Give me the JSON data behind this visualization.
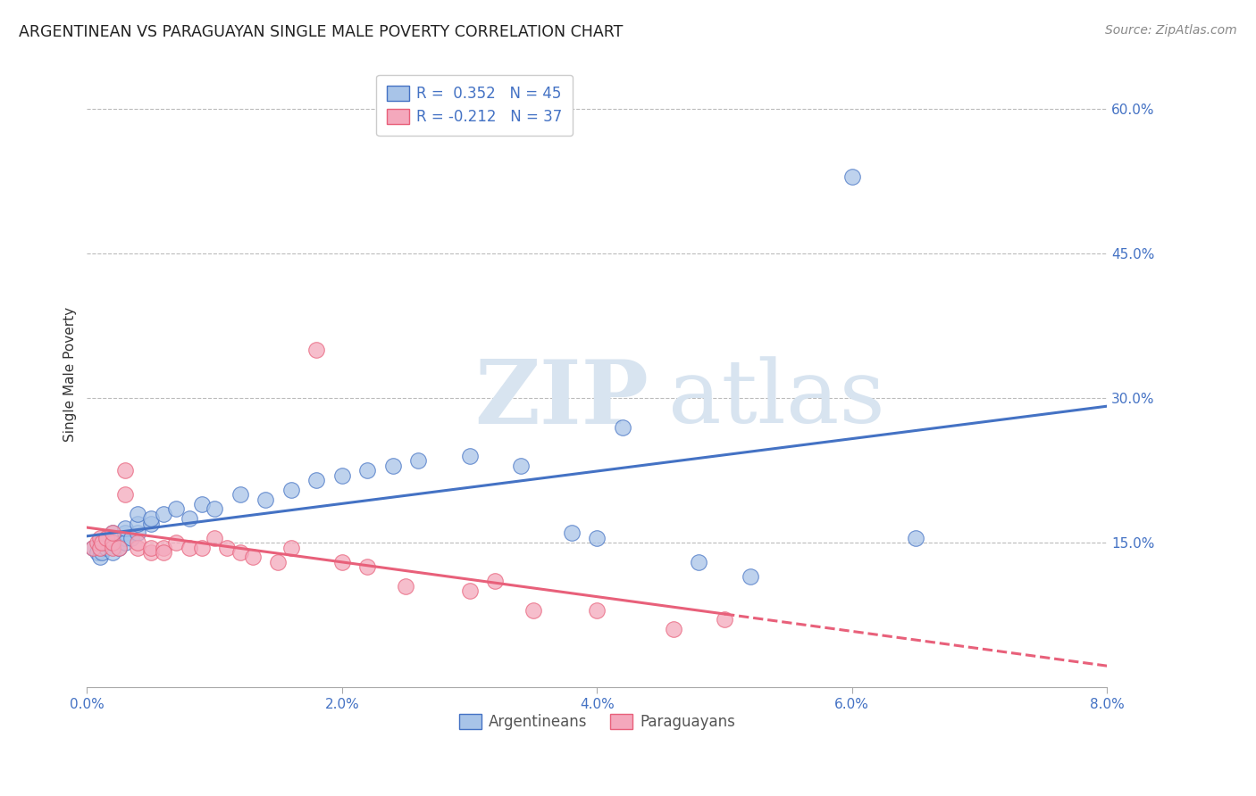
{
  "title": "ARGENTINEAN VS PARAGUAYAN SINGLE MALE POVERTY CORRELATION CHART",
  "source": "Source: ZipAtlas.com",
  "ylabel": "Single Male Poverty",
  "xlim": [
    0.0,
    0.08
  ],
  "ylim": [
    0.0,
    0.65
  ],
  "xticks": [
    0.0,
    0.02,
    0.04,
    0.06,
    0.08
  ],
  "xtick_labels": [
    "0.0%",
    "2.0%",
    "4.0%",
    "6.0%",
    "8.0%"
  ],
  "yticks_right": [
    0.15,
    0.3,
    0.45,
    0.6
  ],
  "ytick_labels_right": [
    "15.0%",
    "30.0%",
    "45.0%",
    "60.0%"
  ],
  "argentineans_R": 0.352,
  "argentineans_N": 45,
  "paraguayans_R": -0.212,
  "paraguayans_N": 37,
  "color_arg": "#A8C4E8",
  "color_par": "#F4A8BC",
  "color_line_arg": "#4472C4",
  "color_line_par": "#E8607A",
  "legend_label_arg": "Argentineans",
  "legend_label_par": "Paraguayans",
  "watermark_zip": "ZIP",
  "watermark_atlas": "atlas",
  "argentineans_x": [
    0.0005,
    0.0008,
    0.001,
    0.001,
    0.001,
    0.0012,
    0.0015,
    0.0015,
    0.002,
    0.002,
    0.002,
    0.002,
    0.0025,
    0.003,
    0.003,
    0.003,
    0.003,
    0.0035,
    0.004,
    0.004,
    0.004,
    0.005,
    0.005,
    0.006,
    0.007,
    0.008,
    0.009,
    0.01,
    0.012,
    0.014,
    0.016,
    0.018,
    0.02,
    0.022,
    0.024,
    0.026,
    0.03,
    0.034,
    0.038,
    0.04,
    0.042,
    0.048,
    0.052,
    0.06,
    0.065
  ],
  "argentineans_y": [
    0.145,
    0.14,
    0.135,
    0.145,
    0.15,
    0.14,
    0.145,
    0.15,
    0.14,
    0.15,
    0.155,
    0.16,
    0.145,
    0.155,
    0.16,
    0.15,
    0.165,
    0.155,
    0.16,
    0.17,
    0.18,
    0.17,
    0.175,
    0.18,
    0.185,
    0.175,
    0.19,
    0.185,
    0.2,
    0.195,
    0.205,
    0.215,
    0.22,
    0.225,
    0.23,
    0.235,
    0.24,
    0.23,
    0.16,
    0.155,
    0.27,
    0.13,
    0.115,
    0.53,
    0.155
  ],
  "paraguayans_x": [
    0.0005,
    0.0008,
    0.001,
    0.001,
    0.0012,
    0.0015,
    0.002,
    0.002,
    0.002,
    0.0025,
    0.003,
    0.003,
    0.004,
    0.004,
    0.005,
    0.005,
    0.006,
    0.006,
    0.007,
    0.008,
    0.009,
    0.01,
    0.011,
    0.012,
    0.013,
    0.015,
    0.016,
    0.018,
    0.02,
    0.022,
    0.025,
    0.03,
    0.032,
    0.035,
    0.04,
    0.046,
    0.05
  ],
  "paraguayans_y": [
    0.145,
    0.15,
    0.155,
    0.145,
    0.15,
    0.155,
    0.145,
    0.15,
    0.16,
    0.145,
    0.225,
    0.2,
    0.145,
    0.15,
    0.14,
    0.145,
    0.145,
    0.14,
    0.15,
    0.145,
    0.145,
    0.155,
    0.145,
    0.14,
    0.135,
    0.13,
    0.145,
    0.35,
    0.13,
    0.125,
    0.105,
    0.1,
    0.11,
    0.08,
    0.08,
    0.06,
    0.07
  ]
}
